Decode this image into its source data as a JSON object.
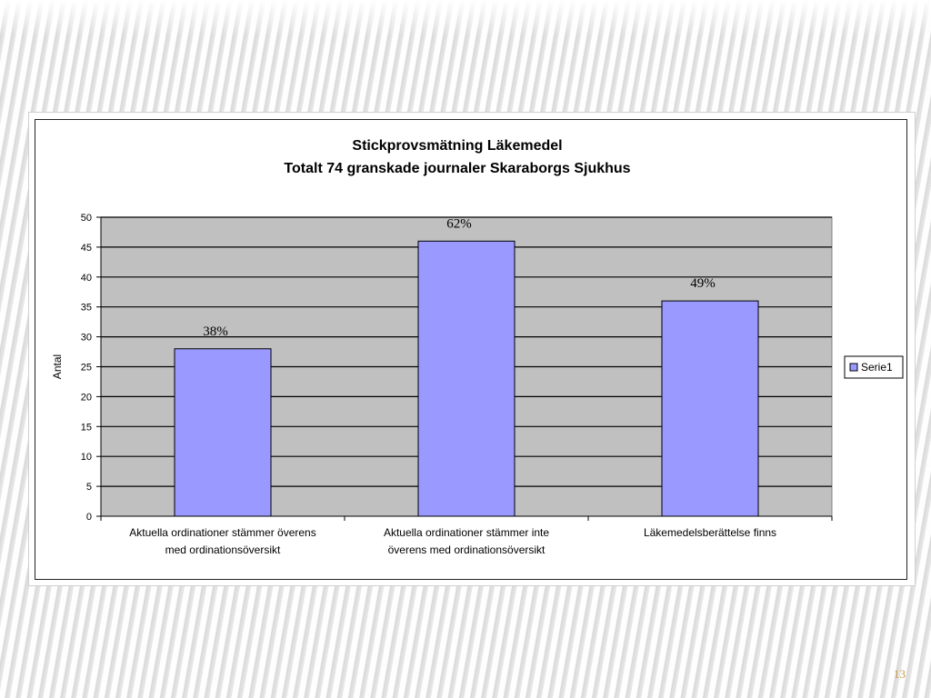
{
  "slide": {
    "page_number": "13"
  },
  "chart_data": {
    "type": "bar",
    "title": "Stickprovsmätning Läkemedel",
    "subtitle": "Totalt 74 granskade journaler Skaraborgs Sjukhus",
    "xlabel": "",
    "ylabel": "Antal",
    "ylim": [
      0,
      50
    ],
    "yticks": [
      0,
      5,
      10,
      15,
      20,
      25,
      30,
      35,
      40,
      45,
      50
    ],
    "categories": [
      "Aktuella ordinationer stämmer överens med ordinationsöversikt",
      "Aktuella ordinationer stämmer inte överens med ordinationsöversikt",
      "Läkemedelsberättelse finns"
    ],
    "category_lines": [
      [
        "Aktuella ordinationer stämmer överens",
        "med ordinationsöversikt"
      ],
      [
        "Aktuella ordinationer stämmer inte",
        "överens med ordinationsöversikt"
      ],
      [
        "Läkemedelsberättelse finns"
      ]
    ],
    "series": [
      {
        "name": "Serie1",
        "values": [
          28,
          46,
          36
        ],
        "color": "#9999ff"
      }
    ],
    "annotations": [
      "38%",
      "62%",
      "49%"
    ],
    "grid": true,
    "plot_background": "#c0c0c0",
    "annotation_color": "#000000",
    "legend": {
      "position": "right",
      "entries": [
        "Serie1"
      ]
    }
  }
}
